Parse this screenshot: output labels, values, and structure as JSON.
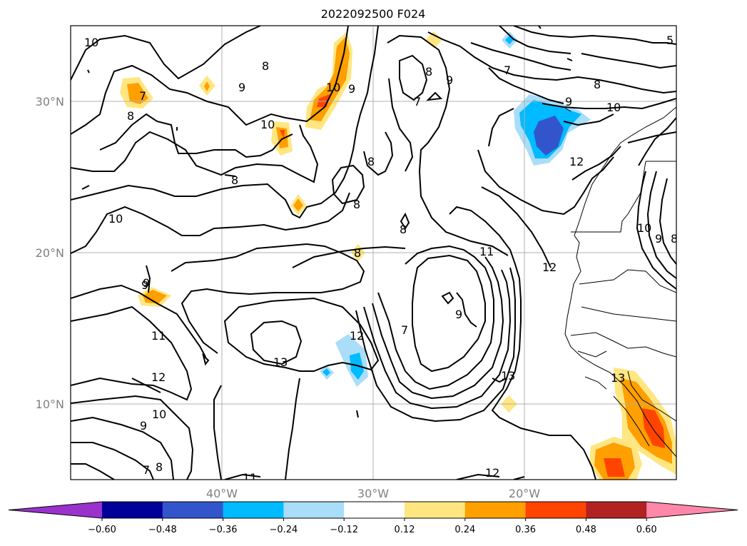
{
  "title": "2022092500 F024",
  "lat_labels": [
    "30°N",
    "20°N",
    "10°N"
  ],
  "lon_labels": [
    "40°W",
    "30°W",
    "20°W"
  ],
  "colorbar": {
    "ticks": [
      "-0.60",
      "-0.48",
      "-0.36",
      "-0.24",
      "-0.12",
      "0.12",
      "0.24",
      "0.36",
      "0.48",
      "0.60"
    ],
    "colors": [
      "#9933cc",
      "#000099",
      "#3355cc",
      "#00bbff",
      "#aaddf8",
      "#ffffff",
      "#ffe680",
      "#ff9f00",
      "#ff4400",
      "#b22222",
      "#ff88aa"
    ]
  },
  "contour_labels": [
    "10",
    "9",
    "8",
    "7",
    "10",
    "9",
    "8",
    "10",
    "7",
    "8",
    "9",
    "7",
    "9",
    "10",
    "8",
    "12",
    "8",
    "8",
    "8",
    "10",
    "9",
    "11",
    "12",
    "7",
    "9",
    "8",
    "11",
    "12",
    "13",
    "12",
    "10",
    "9",
    "8",
    "7",
    "11",
    "13",
    "12",
    "13",
    "10",
    "9",
    "5"
  ]
}
